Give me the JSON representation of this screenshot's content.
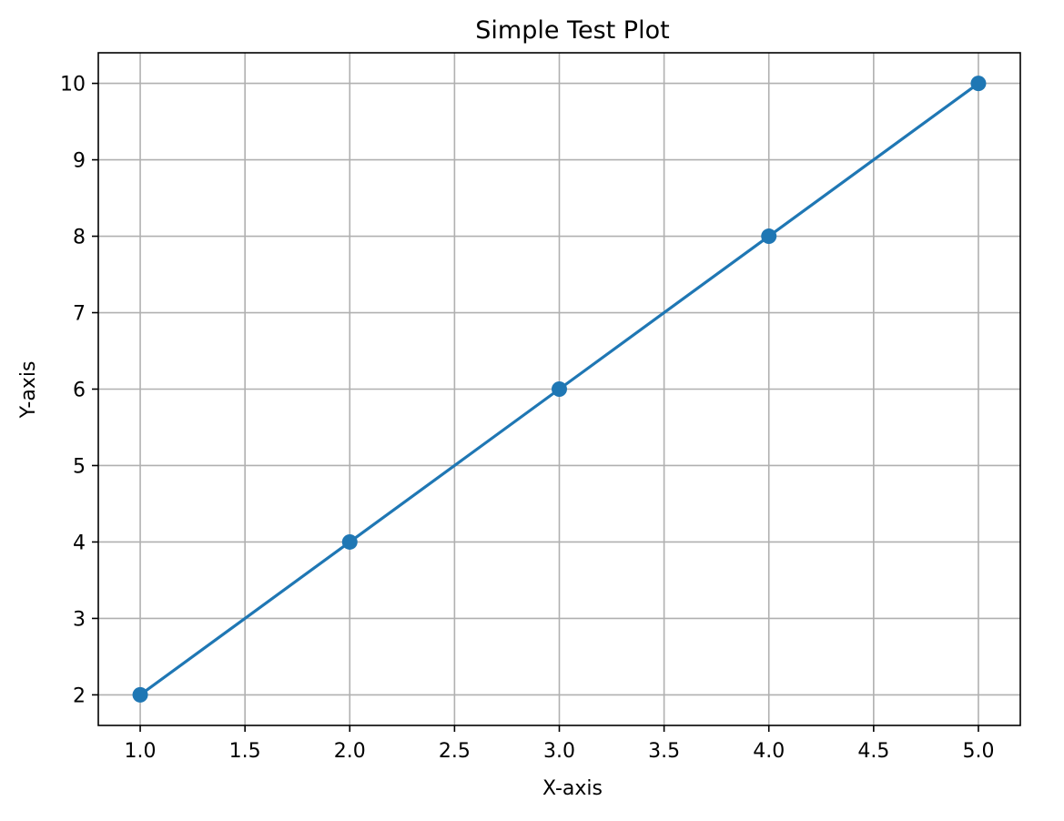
{
  "chart_data": {
    "type": "line",
    "title": "Simple Test Plot",
    "xlabel": "X-axis",
    "ylabel": "Y-axis",
    "x": [
      1,
      2,
      3,
      4,
      5
    ],
    "series": [
      {
        "values": [
          2,
          4,
          6,
          8,
          10
        ],
        "color": "#1f77b4",
        "marker": "circle"
      }
    ],
    "xlim": [
      0.8,
      5.2
    ],
    "ylim": [
      1.6,
      10.4
    ],
    "xticks": [
      "1.0",
      "1.5",
      "2.0",
      "2.5",
      "3.0",
      "3.5",
      "4.0",
      "4.5",
      "5.0"
    ],
    "yticks": [
      "2",
      "3",
      "4",
      "5",
      "6",
      "7",
      "8",
      "9",
      "10"
    ],
    "grid": true,
    "grid_color": "#b0b0b0"
  }
}
